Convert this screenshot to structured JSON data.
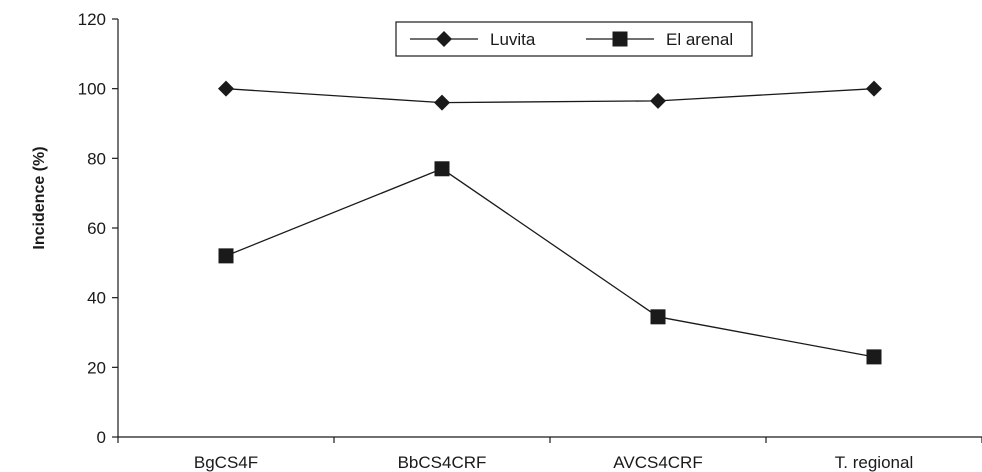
{
  "chart_data": {
    "type": "line",
    "title": "",
    "xlabel": "",
    "ylabel": "Incidence (%)",
    "categories": [
      "BgCS4F",
      "BbCS4CRF",
      "AVCS4CRF",
      "T. regional"
    ],
    "ylim": [
      0,
      120
    ],
    "yticks": [
      0,
      20,
      40,
      60,
      80,
      100,
      120
    ],
    "grid": false,
    "legend_position": "top",
    "series": [
      {
        "name": "Luvita",
        "marker": "diamond",
        "values": [
          100,
          96,
          96.5,
          100
        ]
      },
      {
        "name": "El arenal",
        "marker": "square",
        "values": [
          52,
          77,
          34.5,
          23
        ]
      }
    ],
    "colors": {
      "line": "#1a1a1a",
      "marker": "#1a1a1a"
    }
  }
}
